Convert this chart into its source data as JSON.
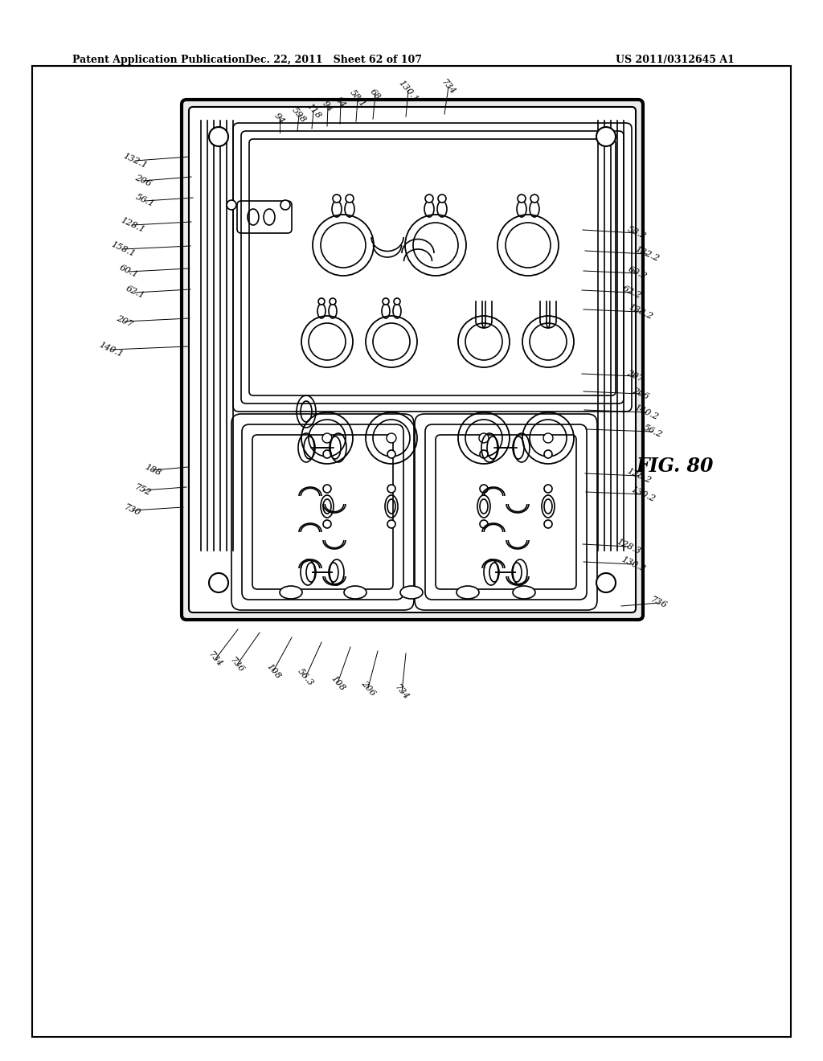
{
  "bg_color": "#ffffff",
  "header_left": "Patent Application Publication",
  "header_center": "Dec. 22, 2011   Sheet 62 of 107",
  "header_right": "US 2011/0312645 A1",
  "fig_label": "FIG. 80"
}
